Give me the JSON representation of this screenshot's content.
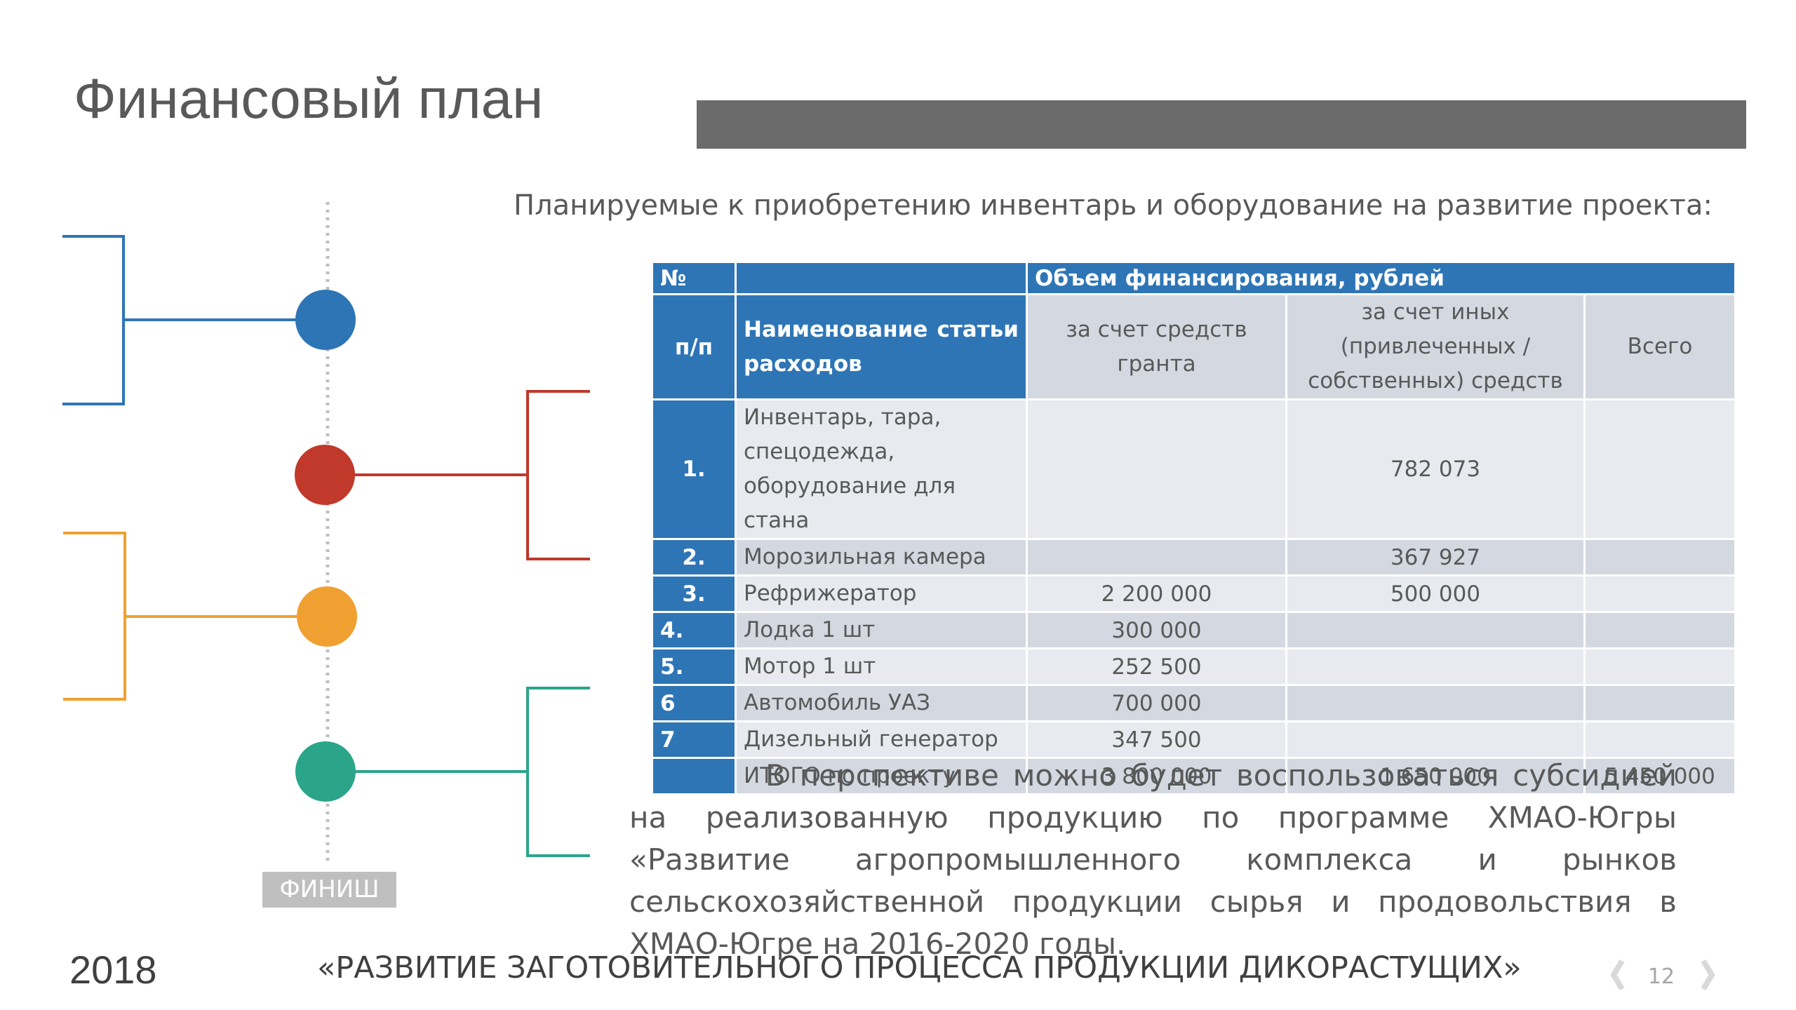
{
  "title": "Финансовый план",
  "subtitle": "Планируемые к приобретению инвентарь и оборудование на развитие проекта:",
  "table": {
    "header": {
      "num_top": "№",
      "num_bottom": "п/п",
      "name": "Наименование статьи расходов",
      "group": "Объем финансирования, рублей",
      "columns": [
        "за счет средств гранта",
        "за счет иных (привлеченных / собственных) средств",
        "Всего"
      ]
    },
    "rows": [
      [
        "1.",
        "Инвентарь, тара, спецодежда, оборудование для стана",
        null,
        "782 073",
        null
      ],
      [
        "2.",
        "Морозильная камера",
        null,
        "367 927",
        null
      ],
      [
        "3.",
        "Рефрижератор",
        "2 200 000",
        "500 000",
        null
      ],
      [
        "4.",
        "Лодка 1 шт",
        "300 000",
        null,
        null
      ],
      [
        "5.",
        "Мотор 1 шт",
        "252 500",
        null,
        null
      ],
      [
        "6",
        "Автомобиль УАЗ",
        "700 000",
        null,
        null
      ],
      [
        "7",
        "Дизельный генератор",
        "347 500",
        null,
        null
      ],
      [
        null,
        "ИТОГО по проекту",
        "3 800 000",
        "1 650 000",
        "5 450 000"
      ]
    ]
  },
  "note": "В перспективе можно будет воспользоваться субсидией  на реализованную продукцию по программе ХМАО-Югры «Развитие агропромышленного  комплекса  и рынков сельскохозяйственной продукции сырья и продовольствия в ХМАО-Югре на 2016-2020 годы.",
  "finish_label": "ФИНИШ",
  "footer": {
    "year": "2018",
    "project": "«РАЗВИТИЕ ЗАГОТОВИТЕЛЬНОГО ПРОЦЕССА ПРОДУКЦИИ ДИКОРАСТУЩИХ»",
    "page": "12"
  }
}
